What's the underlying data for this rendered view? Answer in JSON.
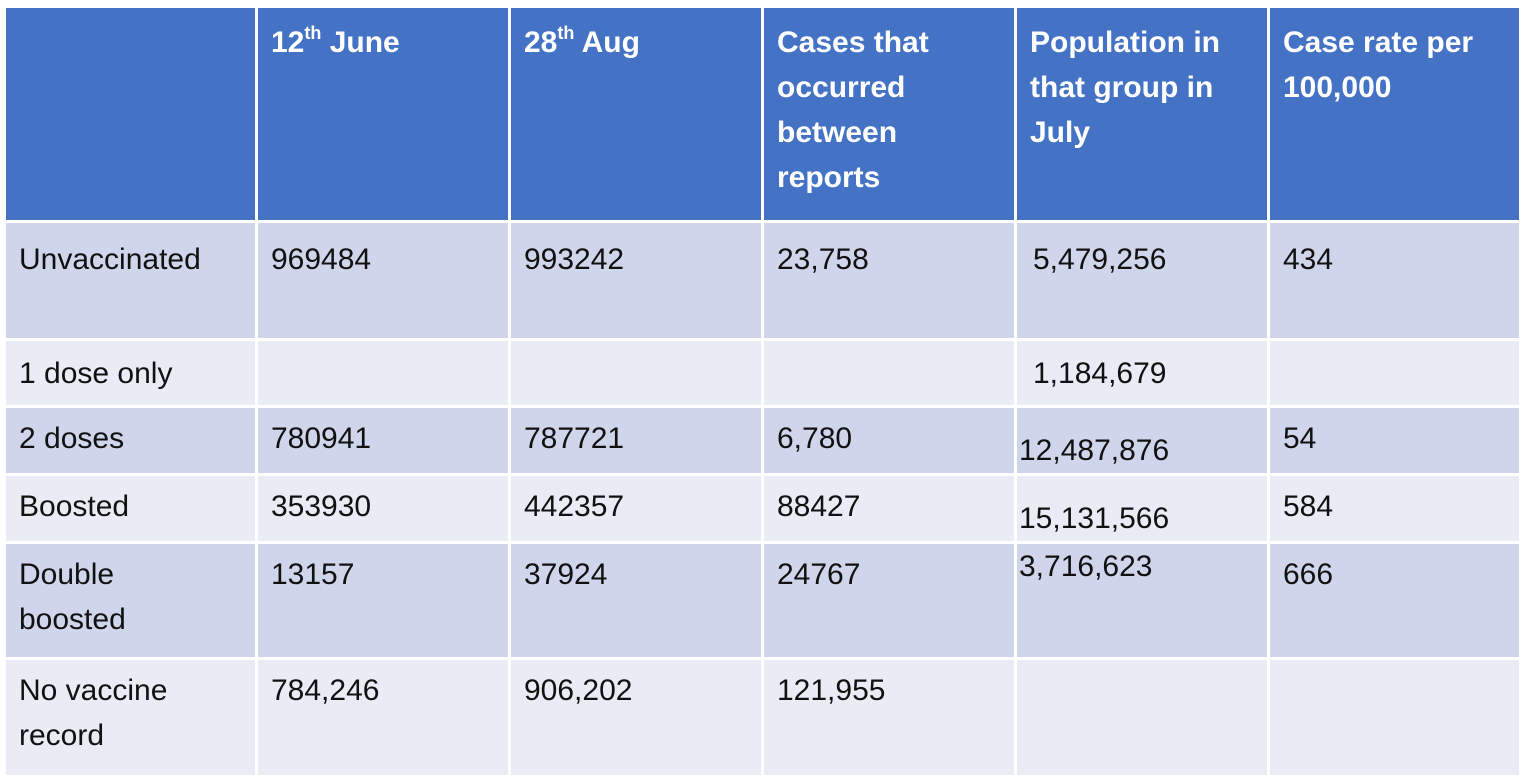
{
  "table": {
    "header": {
      "c0": "",
      "c1_day": "12",
      "c1_sup": "th",
      "c1_month": " June",
      "c2_day": "28",
      "c2_sup": "th",
      "c2_month": " Aug",
      "c3": "Cases that occurred between reports",
      "c4": "Population in that group in July",
      "c5": "Case rate per 100,000"
    },
    "rows": [
      {
        "group": "Unvaccinated",
        "june": "969484",
        "aug": "993242",
        "cases": "23,758",
        "population": "5,479,256",
        "rate": "434"
      },
      {
        "group": "1 dose only",
        "june": "",
        "aug": "",
        "cases": "",
        "population": "1,184,679",
        "rate": ""
      },
      {
        "group": "2 doses",
        "june": "780941",
        "aug": "787721",
        "cases": "6,780",
        "population": "12,487,876",
        "rate": "54"
      },
      {
        "group": "Boosted",
        "june": "353930",
        "aug": "442357",
        "cases": "88427",
        "population": "15,131,566",
        "rate": "584"
      },
      {
        "group": "Double boosted",
        "june": "13157",
        "aug": "37924",
        "cases": "24767",
        "population": "3,716,623",
        "rate": "666"
      },
      {
        "group": "No vaccine record",
        "june": "784,246",
        "aug": "906,202",
        "cases": "121,955",
        "population": "",
        "rate": ""
      }
    ]
  }
}
